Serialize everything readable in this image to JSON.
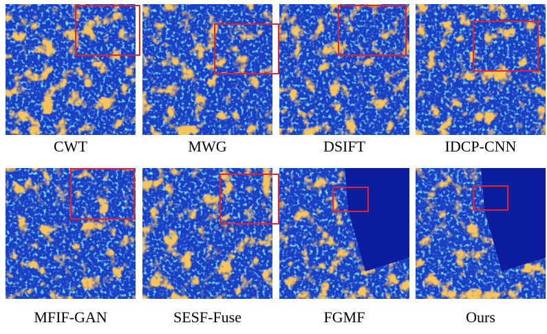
{
  "labels": [
    "CWT",
    "MWG",
    "DSIFT",
    "IDCP-CNN",
    "MFIF-GAN",
    "SESF-Fuse",
    "FGMF",
    "Ours"
  ]
}
